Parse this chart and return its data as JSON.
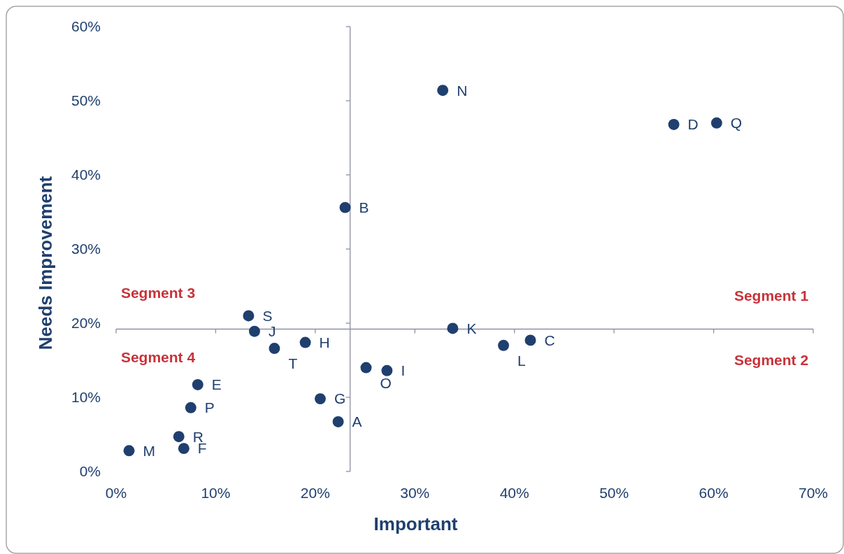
{
  "chart_data": {
    "type": "scatter",
    "xlabel": "Important",
    "ylabel": "Needs Improvement",
    "xlim": [
      0,
      70
    ],
    "ylim": [
      0,
      60
    ],
    "xticks": [
      {
        "value": 0,
        "label": "0%"
      },
      {
        "value": 10,
        "label": "10%"
      },
      {
        "value": 20,
        "label": "20%"
      },
      {
        "value": 30,
        "label": "30%"
      },
      {
        "value": 40,
        "label": "40%"
      },
      {
        "value": 50,
        "label": "50%"
      },
      {
        "value": 60,
        "label": "60%"
      },
      {
        "value": 70,
        "label": "70%"
      }
    ],
    "yticks": [
      {
        "value": 0,
        "label": "0%"
      },
      {
        "value": 10,
        "label": "10%"
      },
      {
        "value": 20,
        "label": "20%"
      },
      {
        "value": 30,
        "label": "30%"
      },
      {
        "value": 40,
        "label": "40%"
      },
      {
        "value": 50,
        "label": "50%"
      },
      {
        "value": 60,
        "label": "60%"
      }
    ],
    "grid": false,
    "marker": "circle",
    "series": [
      {
        "color": "#1f3f6e",
        "x": [
          32.8,
          56.0,
          60.3,
          23.0,
          13.3,
          13.9,
          19.0,
          15.9,
          33.8,
          38.9,
          41.6,
          25.1,
          27.2,
          8.2,
          7.5,
          20.5,
          22.3,
          6.3,
          6.8,
          1.3
        ],
        "values": [
          51.4,
          46.8,
          47.0,
          35.6,
          21.0,
          18.9,
          17.4,
          16.6,
          19.3,
          17.0,
          17.7,
          14.0,
          13.6,
          11.7,
          8.6,
          9.8,
          6.7,
          4.7,
          3.1,
          2.8
        ]
      }
    ],
    "ref_lines": [
      {
        "axis": "x",
        "value": 23.5,
        "color": "#8c90a4"
      },
      {
        "axis": "y",
        "value": 19.2,
        "color": "#8c90a4"
      }
    ],
    "annotations": [
      "Segment 3",
      "Segment 1",
      "Segment 4",
      "Segment 2",
      {
        "text": "N",
        "x": 32.8,
        "y": 51.4
      },
      {
        "text": "D",
        "x": 56.0,
        "y": 46.8
      },
      {
        "text": "Q",
        "x": 60.3,
        "y": 47.0
      },
      {
        "text": "B",
        "x": 23.0,
        "y": 35.6
      },
      {
        "text": "S",
        "x": 13.3,
        "y": 21.0
      },
      {
        "text": "J",
        "x": 13.9,
        "y": 18.9
      },
      {
        "text": "H",
        "x": 19.0,
        "y": 17.4
      },
      {
        "text": "T",
        "x": 15.9,
        "y": 16.6
      },
      {
        "text": "K",
        "x": 33.8,
        "y": 19.3
      },
      {
        "text": "L",
        "x": 38.9,
        "y": 17.0
      },
      {
        "text": "C",
        "x": 41.6,
        "y": 17.7
      },
      {
        "text": "O",
        "x": 25.1,
        "y": 14.0
      },
      {
        "text": "I",
        "x": 27.2,
        "y": 13.6
      },
      {
        "text": "E",
        "x": 8.2,
        "y": 11.7
      },
      {
        "text": "P",
        "x": 7.5,
        "y": 8.6
      },
      {
        "text": "G",
        "x": 20.5,
        "y": 9.8
      },
      {
        "text": "A",
        "x": 22.3,
        "y": 6.7
      },
      {
        "text": "R",
        "x": 6.3,
        "y": 4.7
      },
      {
        "text": "F",
        "x": 6.8,
        "y": 3.1
      },
      {
        "text": "M",
        "x": 1.3,
        "y": 2.8
      }
    ]
  }
}
